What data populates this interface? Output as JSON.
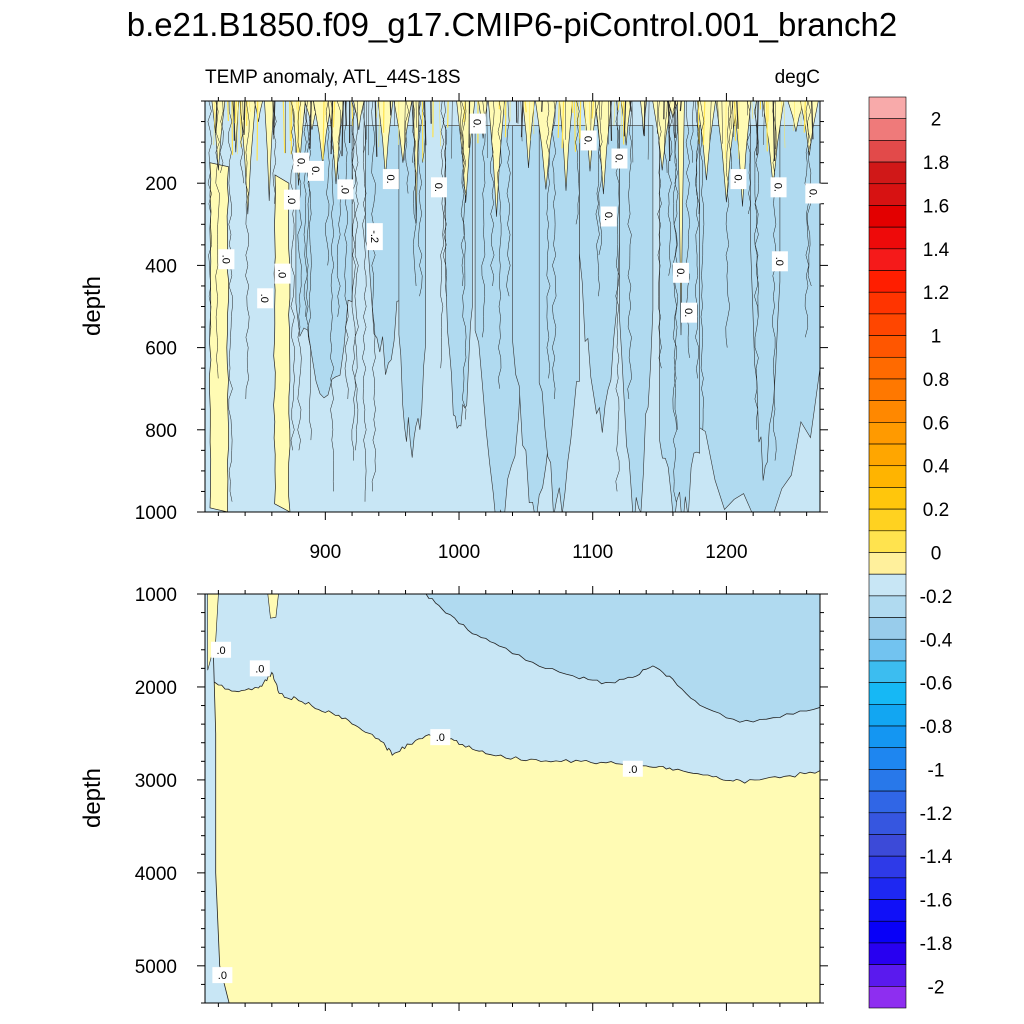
{
  "chart_data": {
    "type": "contour",
    "title": "b.e21.B1850.f09_g17.CMIP6-piControl.001_branch2",
    "left_subtitle": "TEMP anomaly, ATL_44S-18S",
    "right_subtitle": "degC",
    "ylabel": "depth",
    "xlim": [
      810,
      1270
    ],
    "x_ticks": [
      900,
      1000,
      1100,
      1200
    ],
    "x_tick_labels": [
      "900",
      "1000",
      "1100",
      "1200"
    ],
    "panels": [
      {
        "name": "upper",
        "ylim": [
          0,
          1000
        ],
        "y_ticks": [
          200,
          400,
          600,
          800,
          1000
        ],
        "y_tick_labels": [
          "200",
          "400",
          "600",
          "800",
          "1000"
        ],
        "show_x_tick_labels": true,
        "contour_labels": [
          {
            "text": "0.",
            "x": 1014,
            "y": 55
          },
          {
            "text": "0.",
            "x": 985,
            "y": 210
          },
          {
            "text": "0.",
            "x": 949,
            "y": 190
          },
          {
            "text": "0.",
            "x": 1097,
            "y": 96
          },
          {
            "text": "0.",
            "x": 1239,
            "y": 210
          },
          {
            "text": "0.",
            "x": 1209,
            "y": 190
          },
          {
            "text": "0.",
            "x": 1265,
            "y": 225
          },
          {
            "text": "0.",
            "x": 1172,
            "y": 515
          },
          {
            "text": "0.",
            "x": 1166,
            "y": 418
          },
          {
            "text": "0.",
            "x": 1112,
            "y": 281
          },
          {
            "text": "0.",
            "x": 1120,
            "y": 140
          },
          {
            "text": "-.2",
            "x": 937,
            "y": 330
          },
          {
            "text": ".0",
            "x": 875,
            "y": 240
          },
          {
            "text": "0.",
            "x": 882,
            "y": 150
          },
          {
            "text": ".0",
            "x": 915,
            "y": 215
          },
          {
            "text": ".0",
            "x": 826,
            "y": 385
          },
          {
            "text": ".0",
            "x": 868,
            "y": 420
          },
          {
            "text": ".0",
            "x": 855,
            "y": 480
          },
          {
            "text": ".0",
            "x": 1240,
            "y": 390
          },
          {
            "text": "0.",
            "x": 893,
            "y": 170
          }
        ]
      },
      {
        "name": "lower",
        "ylim": [
          1000,
          5400
        ],
        "y_ticks": [
          1000,
          2000,
          3000,
          4000,
          5000
        ],
        "y_tick_labels": [
          "1000",
          "2000",
          "3000",
          "4000",
          "5000"
        ],
        "show_x_tick_labels": false,
        "contour_labels": [
          {
            "text": ".0",
            "x": 822,
            "y": 1600
          },
          {
            "text": ".0",
            "x": 851,
            "y": 1800
          },
          {
            "text": ".0",
            "x": 986,
            "y": 2540
          },
          {
            "text": ".0",
            "x": 1130,
            "y": 2880
          },
          {
            "text": ".0",
            "x": 823,
            "y": 5100
          }
        ]
      }
    ],
    "colorbar": {
      "levels": [
        -2.1,
        -2.0,
        -1.9,
        -1.8,
        -1.7,
        -1.6,
        -1.5,
        -1.4,
        -1.3,
        -1.2,
        -1.1,
        -1.0,
        -0.9,
        -0.8,
        -0.7,
        -0.6,
        -0.5,
        -0.4,
        -0.3,
        -0.2,
        -0.1,
        0.0,
        0.1,
        0.2,
        0.3,
        0.4,
        0.5,
        0.6,
        0.7,
        0.8,
        0.9,
        1.0,
        1.1,
        1.2,
        1.3,
        1.4,
        1.5,
        1.6,
        1.7,
        1.8,
        1.9,
        2.0,
        2.1
      ],
      "colors_top_to_bottom": [
        "#f8aaaa",
        "#ef7a7a",
        "#e24a4a",
        "#d01818",
        "#d71212",
        "#e30000",
        "#ee0a0a",
        "#f51a1a",
        "#ff1e00",
        "#ff3400",
        "#ff4600",
        "#ff5600",
        "#ff6a00",
        "#ff7800",
        "#ff8800",
        "#ff9a00",
        "#ffa600",
        "#ffb400",
        "#ffc60c",
        "#ffd220",
        "#ffe34e",
        "#fff09c",
        "#c8e6f5",
        "#b0daf0",
        "#98cceb",
        "#72c3f0",
        "#3cbdf0",
        "#16b8f5",
        "#12a6f2",
        "#1496f2",
        "#1e86f0",
        "#2878ea",
        "#3066e6",
        "#3656e0",
        "#3c4ad8",
        "#2e3ae8",
        "#1e28f2",
        "#1010f8",
        "#0800f8",
        "#2800f0",
        "#5a1aee",
        "#8e2ef0"
      ],
      "tick_labels": [
        "2",
        "1.8",
        "1.6",
        "1.4",
        "1.2",
        "1",
        "0.8",
        "0.6",
        "0.4",
        "0.2",
        "0",
        "-0.2",
        "-0.4",
        "-0.6",
        "-0.8",
        "-1",
        "-1.2",
        "-1.4",
        "-1.6",
        "-1.8",
        "-2"
      ]
    },
    "fill_colors": {
      "positive_0_02": "#fffbb4",
      "negative_0_02": "#c8e6f5",
      "negative_02_04": "#b0daf0"
    }
  }
}
